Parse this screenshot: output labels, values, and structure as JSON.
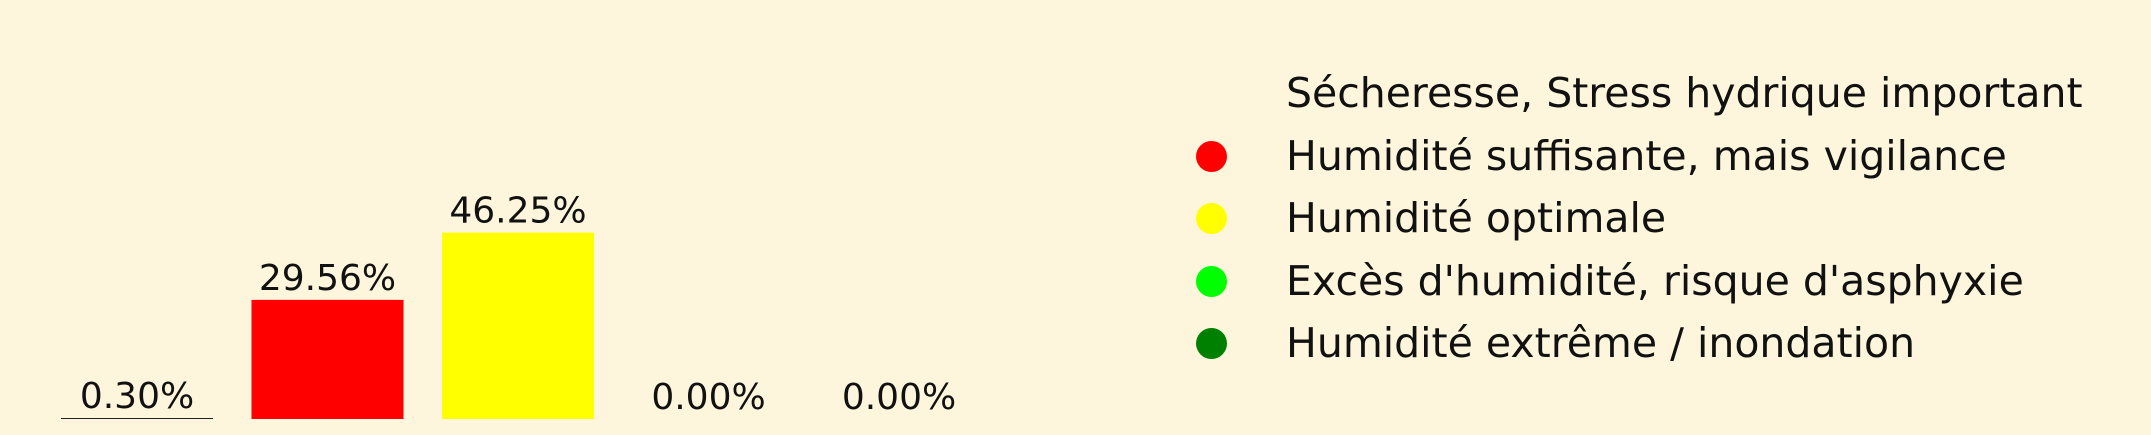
{
  "chart_data": {
    "type": "bar",
    "categories": [
      "Sécheresse, Stress hydrique important",
      "Humidité suffisante, mais vigilance",
      "Humidité optimale",
      "Excès d'humidité, risque d'asphyxie",
      "Humidité extrême / inondation"
    ],
    "values": [
      0.3,
      29.56,
      46.25,
      0.0,
      0.0
    ],
    "value_labels": [
      "0.30%",
      "29.56%",
      "46.25%",
      "0.00%",
      "0.00%"
    ],
    "colors": [
      "#fdf6dc",
      "#ff0000",
      "#ffff00",
      "#00ff00",
      "#008000"
    ],
    "legend_position": "right",
    "ylim": [
      0,
      100
    ],
    "grid": false
  },
  "legend": {
    "items": [
      {
        "label": "Sécheresse, Stress hydrique important",
        "color": "#fdf6dc"
      },
      {
        "label": "Humidité suffisante, mais vigilance",
        "color": "#ff0000"
      },
      {
        "label": "Humidité optimale",
        "color": "#ffff00"
      },
      {
        "label": "Excès d'humidité, risque d'asphyxie",
        "color": "#00ff00"
      },
      {
        "label": "Humidité extrême / inondation",
        "color": "#008000"
      }
    ]
  }
}
